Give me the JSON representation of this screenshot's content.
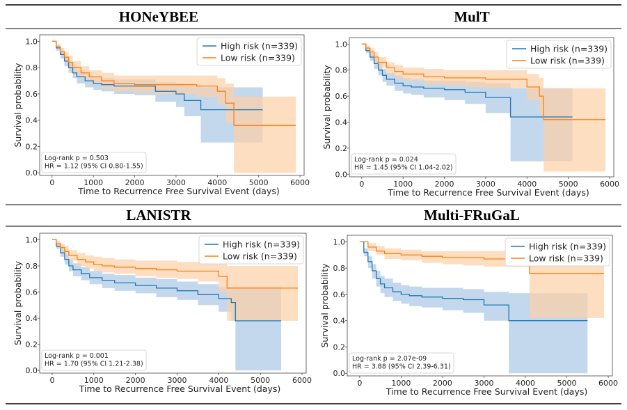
{
  "colors": {
    "high": "#1f77b4",
    "low": "#ff7f0e",
    "high_ci": "#aac8e4",
    "low_ci": "#fdd0a6"
  },
  "chart_data": [
    {
      "type": "line",
      "title": "HONeYBEE",
      "xlabel": "Time to Recurrence Free Survival Event (days)",
      "ylabel": "Survival probability",
      "xlim": [
        -300,
        6100
      ],
      "ylim": [
        -0.02,
        1.05
      ],
      "xticks": [
        0,
        1000,
        2000,
        3000,
        4000,
        5000,
        6000
      ],
      "xtick_labels": [
        "0",
        "1000",
        "2000",
        "3000",
        "4000",
        "5000",
        "6000"
      ],
      "yticks": [
        0.0,
        0.2,
        0.4,
        0.6,
        0.8,
        1.0
      ],
      "ytick_labels": [
        "0.0",
        "0.2",
        "0.4",
        "0.6",
        "0.8",
        "1.0"
      ],
      "legend_position": "top-right",
      "stats": [
        "Log-rank p = 0.503",
        "HR = 1.12 (95% CI 0.80-1.55)"
      ],
      "series": [
        {
          "name": "High risk (n=339)",
          "color": "high",
          "x": [
            0,
            100,
            200,
            300,
            400,
            500,
            600,
            800,
            1000,
            1200,
            1500,
            2000,
            2500,
            3000,
            3200,
            3600,
            4000,
            5100
          ],
          "y": [
            1.0,
            0.95,
            0.9,
            0.85,
            0.8,
            0.76,
            0.73,
            0.7,
            0.68,
            0.67,
            0.66,
            0.66,
            0.62,
            0.6,
            0.55,
            0.48,
            0.48,
            0.48
          ],
          "lower": [
            1.0,
            0.93,
            0.87,
            0.81,
            0.76,
            0.72,
            0.68,
            0.65,
            0.63,
            0.62,
            0.6,
            0.59,
            0.54,
            0.5,
            0.43,
            0.23,
            0.23,
            0.23
          ],
          "upper": [
            1.0,
            0.97,
            0.93,
            0.89,
            0.85,
            0.81,
            0.78,
            0.75,
            0.73,
            0.72,
            0.71,
            0.71,
            0.69,
            0.68,
            0.66,
            0.65,
            0.65,
            0.65
          ]
        },
        {
          "name": "Low risk (n=339)",
          "color": "low",
          "x": [
            0,
            100,
            200,
            300,
            400,
            500,
            700,
            900,
            1200,
            1500,
            2000,
            2500,
            3000,
            3500,
            4000,
            4200,
            4400,
            5900
          ],
          "y": [
            1.0,
            0.96,
            0.92,
            0.88,
            0.84,
            0.8,
            0.76,
            0.73,
            0.7,
            0.68,
            0.67,
            0.67,
            0.67,
            0.66,
            0.62,
            0.53,
            0.36,
            0.36
          ],
          "lower": [
            1.0,
            0.94,
            0.89,
            0.84,
            0.8,
            0.75,
            0.71,
            0.68,
            0.64,
            0.62,
            0.61,
            0.6,
            0.6,
            0.58,
            0.52,
            0.38,
            0.0,
            0.0
          ],
          "upper": [
            1.0,
            0.98,
            0.95,
            0.92,
            0.89,
            0.85,
            0.81,
            0.78,
            0.76,
            0.74,
            0.74,
            0.74,
            0.74,
            0.74,
            0.72,
            0.68,
            0.58,
            0.58
          ]
        }
      ]
    },
    {
      "type": "line",
      "title": "MulT",
      "xlabel": "Time to Recurrence Free Survival Event (days)",
      "ylabel": "Survival probability",
      "xlim": [
        -300,
        6100
      ],
      "ylim": [
        -0.02,
        1.05
      ],
      "xticks": [
        0,
        1000,
        2000,
        3000,
        4000,
        5000,
        6000
      ],
      "xtick_labels": [
        "0",
        "1000",
        "2000",
        "3000",
        "4000",
        "5000",
        "6000"
      ],
      "yticks": [
        0.0,
        0.2,
        0.4,
        0.6,
        0.8,
        1.0
      ],
      "ytick_labels": [
        "0.0",
        "0.2",
        "0.4",
        "0.6",
        "0.8",
        "1.0"
      ],
      "legend_position": "top-right",
      "stats": [
        "Log-rank p = 0.024",
        "HR = 1.45 (95% CI 1.04-2.02)"
      ],
      "series": [
        {
          "name": "High risk (n=339)",
          "color": "high",
          "x": [
            0,
            100,
            200,
            300,
            400,
            500,
            600,
            800,
            1000,
            1200,
            1500,
            2000,
            2500,
            3000,
            3600,
            4000,
            5100
          ],
          "y": [
            1.0,
            0.95,
            0.9,
            0.85,
            0.8,
            0.76,
            0.73,
            0.7,
            0.68,
            0.67,
            0.66,
            0.65,
            0.63,
            0.59,
            0.44,
            0.44,
            0.44
          ],
          "lower": [
            1.0,
            0.93,
            0.87,
            0.81,
            0.76,
            0.71,
            0.68,
            0.64,
            0.62,
            0.61,
            0.59,
            0.57,
            0.54,
            0.47,
            0.1,
            0.1,
            0.1
          ],
          "upper": [
            1.0,
            0.97,
            0.93,
            0.89,
            0.85,
            0.81,
            0.78,
            0.76,
            0.74,
            0.73,
            0.72,
            0.72,
            0.71,
            0.7,
            0.66,
            0.66,
            0.66
          ]
        },
        {
          "name": "Low risk (n=339)",
          "color": "low",
          "x": [
            0,
            100,
            200,
            300,
            400,
            600,
            800,
            1000,
            1500,
            2000,
            2500,
            3000,
            4000,
            4300,
            4400,
            5900
          ],
          "y": [
            1.0,
            0.97,
            0.94,
            0.9,
            0.86,
            0.82,
            0.79,
            0.77,
            0.75,
            0.74,
            0.74,
            0.73,
            0.67,
            0.6,
            0.42,
            0.42
          ],
          "lower": [
            1.0,
            0.95,
            0.91,
            0.86,
            0.82,
            0.77,
            0.74,
            0.72,
            0.69,
            0.68,
            0.67,
            0.66,
            0.57,
            0.46,
            0.02,
            0.02
          ],
          "upper": [
            1.0,
            0.99,
            0.97,
            0.94,
            0.9,
            0.86,
            0.84,
            0.82,
            0.81,
            0.8,
            0.8,
            0.8,
            0.77,
            0.74,
            0.66,
            0.66
          ]
        }
      ]
    },
    {
      "type": "line",
      "title": "LANISTR",
      "xlabel": "Time to Recurrence Free Survival Event (days)",
      "ylabel": "Survival probability",
      "xlim": [
        -300,
        6100
      ],
      "ylim": [
        -0.02,
        1.05
      ],
      "xticks": [
        0,
        1000,
        2000,
        3000,
        4000,
        5000,
        6000
      ],
      "xtick_labels": [
        "0",
        "1000",
        "2000",
        "3000",
        "4000",
        "5000",
        "6000"
      ],
      "yticks": [
        0.0,
        0.2,
        0.4,
        0.6,
        0.8,
        1.0
      ],
      "ytick_labels": [
        "0.0",
        "0.2",
        "0.4",
        "0.6",
        "0.8",
        "1.0"
      ],
      "legend_position": "top-right",
      "stats": [
        "Log-rank p = 0.001",
        "HR = 1.70 (95% CI 1.21-2.38)"
      ],
      "series": [
        {
          "name": "High risk (n=339)",
          "color": "high",
          "x": [
            0,
            100,
            200,
            300,
            400,
            500,
            700,
            900,
            1200,
            1500,
            2000,
            2500,
            3000,
            3500,
            4000,
            4300,
            4400,
            5500
          ],
          "y": [
            1.0,
            0.95,
            0.9,
            0.85,
            0.8,
            0.77,
            0.74,
            0.71,
            0.69,
            0.67,
            0.65,
            0.63,
            0.61,
            0.58,
            0.55,
            0.52,
            0.38,
            0.38
          ],
          "lower": [
            1.0,
            0.93,
            0.87,
            0.81,
            0.76,
            0.72,
            0.69,
            0.66,
            0.63,
            0.61,
            0.59,
            0.56,
            0.54,
            0.5,
            0.45,
            0.38,
            0.0,
            0.0
          ],
          "upper": [
            1.0,
            0.97,
            0.93,
            0.89,
            0.85,
            0.82,
            0.79,
            0.76,
            0.74,
            0.73,
            0.71,
            0.7,
            0.68,
            0.66,
            0.64,
            0.64,
            0.64,
            0.64
          ]
        },
        {
          "name": "Low risk (n=339)",
          "color": "low",
          "x": [
            0,
            100,
            200,
            300,
            400,
            600,
            800,
            1000,
            1200,
            1500,
            2000,
            2500,
            3000,
            3500,
            4000,
            4200,
            5900
          ],
          "y": [
            1.0,
            0.97,
            0.94,
            0.91,
            0.88,
            0.85,
            0.83,
            0.81,
            0.8,
            0.79,
            0.78,
            0.77,
            0.76,
            0.76,
            0.72,
            0.63,
            0.63
          ],
          "lower": [
            1.0,
            0.95,
            0.91,
            0.87,
            0.84,
            0.8,
            0.78,
            0.76,
            0.75,
            0.74,
            0.72,
            0.71,
            0.7,
            0.68,
            0.6,
            0.38,
            0.38
          ],
          "upper": [
            1.0,
            0.99,
            0.97,
            0.95,
            0.92,
            0.9,
            0.88,
            0.87,
            0.86,
            0.85,
            0.84,
            0.84,
            0.83,
            0.83,
            0.82,
            0.8,
            0.8
          ]
        }
      ]
    },
    {
      "type": "line",
      "title": "Multi-FRuGaL",
      "xlabel": "Time to Recurrence Free Survival Event (days)",
      "ylabel": "Survival probability",
      "xlim": [
        -300,
        6100
      ],
      "ylim": [
        -0.02,
        1.05
      ],
      "xticks": [
        0,
        1000,
        2000,
        3000,
        4000,
        5000,
        6000
      ],
      "xtick_labels": [
        "0",
        "1000",
        "2000",
        "3000",
        "4000",
        "5000",
        "6000"
      ],
      "yticks": [
        0.0,
        0.2,
        0.4,
        0.6,
        0.8,
        1.0
      ],
      "ytick_labels": [
        "0.0",
        "0.2",
        "0.4",
        "0.6",
        "0.8",
        "1.0"
      ],
      "legend_position": "top-right",
      "stats": [
        "Log-rank p = 2.07e-09",
        "HR = 3.88 (95% CI 2.39-6.31)"
      ],
      "series": [
        {
          "name": "High risk (n=339)",
          "color": "high",
          "x": [
            0,
            100,
            200,
            300,
            400,
            500,
            600,
            800,
            1000,
            1200,
            1500,
            2000,
            2500,
            3000,
            3600,
            4000,
            5500
          ],
          "y": [
            1.0,
            0.92,
            0.85,
            0.78,
            0.72,
            0.68,
            0.65,
            0.62,
            0.6,
            0.59,
            0.58,
            0.57,
            0.56,
            0.52,
            0.4,
            0.4,
            0.4
          ],
          "lower": [
            1.0,
            0.89,
            0.8,
            0.72,
            0.66,
            0.61,
            0.58,
            0.55,
            0.53,
            0.51,
            0.5,
            0.48,
            0.46,
            0.4,
            0.0,
            0.0,
            0.0
          ],
          "upper": [
            1.0,
            0.95,
            0.89,
            0.83,
            0.78,
            0.74,
            0.72,
            0.69,
            0.67,
            0.66,
            0.65,
            0.65,
            0.64,
            0.62,
            0.61,
            0.61,
            0.61
          ]
        },
        {
          "name": "Low risk (n=339)",
          "color": "low",
          "x": [
            0,
            200,
            400,
            600,
            1000,
            1500,
            2000,
            2500,
            3000,
            4100,
            5900
          ],
          "y": [
            1.0,
            0.96,
            0.93,
            0.91,
            0.9,
            0.89,
            0.88,
            0.88,
            0.87,
            0.76,
            0.76
          ],
          "lower": [
            1.0,
            0.93,
            0.9,
            0.87,
            0.86,
            0.84,
            0.83,
            0.82,
            0.81,
            0.42,
            0.42
          ],
          "upper": [
            1.0,
            0.99,
            0.97,
            0.95,
            0.94,
            0.93,
            0.93,
            0.93,
            0.93,
            0.91,
            0.91
          ]
        }
      ]
    }
  ]
}
